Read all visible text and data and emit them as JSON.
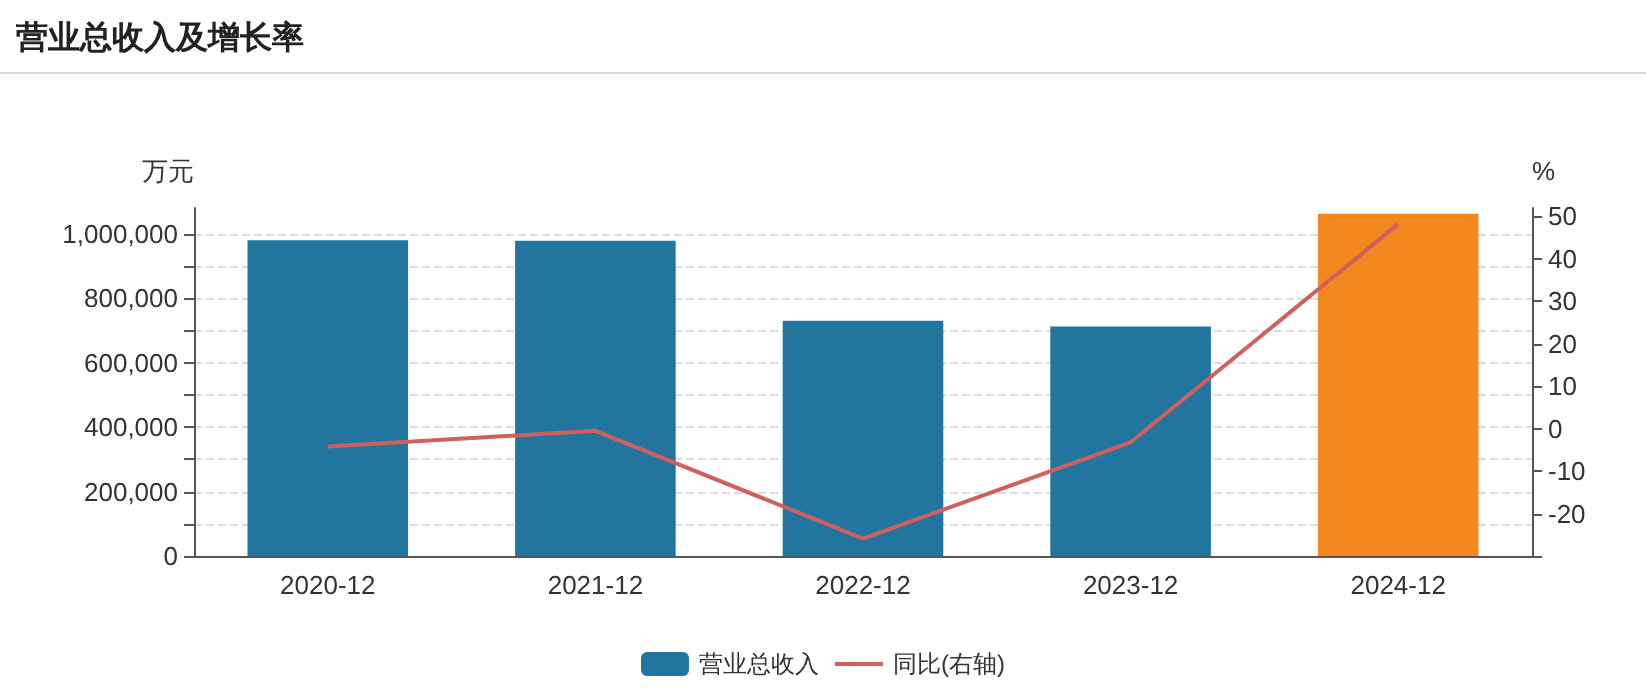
{
  "chart_data": {
    "type": "bar",
    "title": "营业总收入及增长率",
    "ylabel": "万元",
    "y2label": "%",
    "categories": [
      "2020-12",
      "2021-12",
      "2022-12",
      "2023-12",
      "2024-12"
    ],
    "series": [
      {
        "name": "营业总收入",
        "color": "#21759f",
        "colors": [
          "#21759f",
          "#21759f",
          "#21759f",
          "#21759f",
          "#f5871f"
        ],
        "values": [
          980000,
          978000,
          730000,
          712000,
          1062000
        ]
      },
      {
        "name": "同比(右轴)",
        "type": "line",
        "axis": "y2",
        "color": "#d0605e",
        "values": [
          -4.2,
          -0.5,
          -25.9,
          -3.2,
          48.2
        ]
      }
    ],
    "ylim": [
      0,
      1080000
    ],
    "yticks": [
      0,
      {
        "value": 100000,
        "label": null
      },
      {
        "value": 200000,
        "label": "200,000"
      },
      {
        "value": 300000,
        "label": null
      },
      {
        "value": 400000,
        "label": "400,000"
      },
      {
        "value": 500000,
        "label": null
      },
      {
        "value": 600000,
        "label": "600,000"
      },
      {
        "value": 700000,
        "label": null
      },
      {
        "value": 800000,
        "label": "800,000"
      },
      {
        "value": 900000,
        "label": null
      },
      {
        "value": 1000000,
        "label": "1,000,000"
      }
    ],
    "y2lim": [
      -30,
      52
    ],
    "y2ticks": [
      {
        "value": -30,
        "label": null
      },
      -20,
      -10,
      0,
      10,
      20,
      30,
      40,
      50
    ],
    "grid": "y",
    "legend": "bottom",
    "marker": "none",
    "line_style": "solid"
  }
}
